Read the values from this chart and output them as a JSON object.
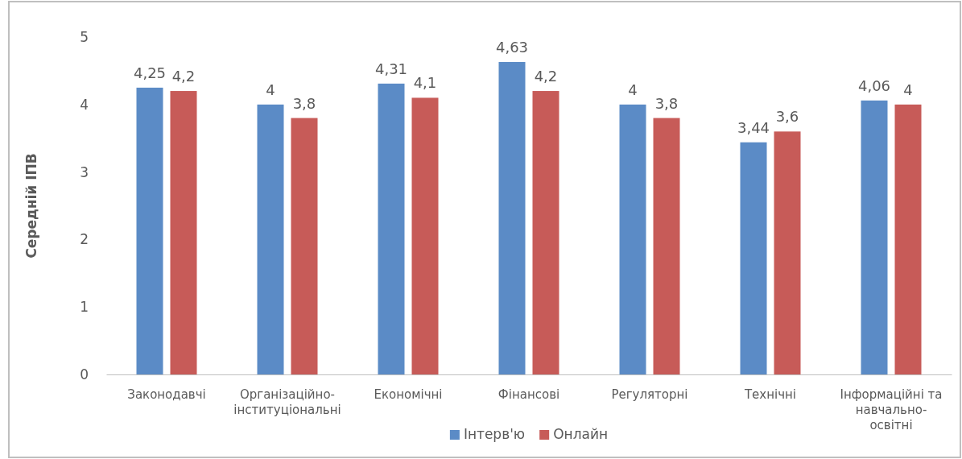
{
  "chart_data": {
    "type": "bar",
    "ylabel": "Середній ІПВ",
    "categories": [
      "Законодавчі",
      "Організаційно-інституціональні",
      "Економічні",
      "Фінансові",
      "Регуляторні",
      "Технічні",
      "Інформаційні та навчально-освітні"
    ],
    "series": [
      {
        "name": "Інтерв'ю",
        "color": "#5b8bc6",
        "values": [
          4.25,
          4,
          4.31,
          4.63,
          4,
          3.44,
          4.06
        ],
        "value_labels": [
          "4,25",
          "4",
          "4,31",
          "4,63",
          "4",
          "3,44",
          "4,06"
        ]
      },
      {
        "name": "Онлайн",
        "color": "#c75b58",
        "values": [
          4.2,
          3.8,
          4.1,
          4.2,
          3.8,
          3.6,
          4
        ],
        "value_labels": [
          "4,2",
          "3,8",
          "4,1",
          "4,2",
          "3,8",
          "3,6",
          "4"
        ]
      }
    ],
    "ylim": [
      0,
      5
    ],
    "yticks": [
      0,
      1,
      2,
      3,
      4,
      5
    ],
    "grid": false,
    "legend": "bottom"
  }
}
